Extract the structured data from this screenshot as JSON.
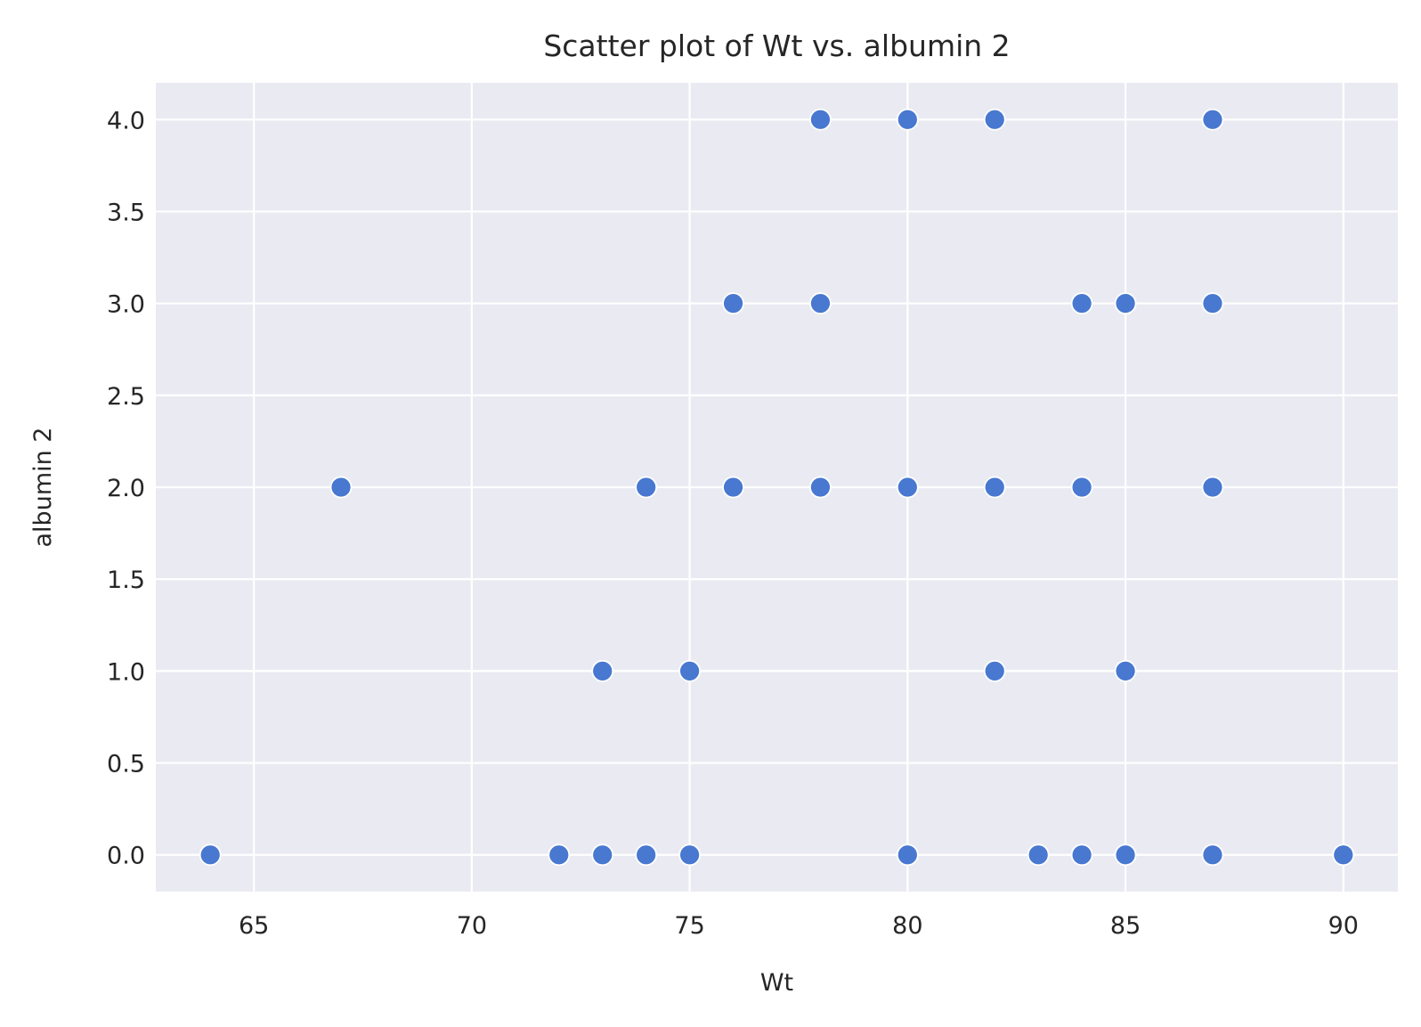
{
  "chart_data": {
    "type": "scatter",
    "title": "Scatter plot of Wt vs. albumin 2",
    "xlabel": "Wt",
    "ylabel": "albumin 2",
    "xlim": [
      62.75,
      91.25
    ],
    "ylim": [
      -0.2,
      4.2
    ],
    "xticks": [
      65,
      70,
      75,
      80,
      85,
      90
    ],
    "xtick_labels": [
      "65",
      "70",
      "75",
      "80",
      "85",
      "90"
    ],
    "yticks": [
      0.0,
      0.5,
      1.0,
      1.5,
      2.0,
      2.5,
      3.0,
      3.5,
      4.0
    ],
    "ytick_labels": [
      "0.0",
      "0.5",
      "1.0",
      "1.5",
      "2.0",
      "2.5",
      "3.0",
      "3.5",
      "4.0"
    ],
    "grid": true,
    "series": [
      {
        "color": "#4878d0",
        "points": [
          {
            "x": 78,
            "y": 4
          },
          {
            "x": 80,
            "y": 4
          },
          {
            "x": 82,
            "y": 4
          },
          {
            "x": 87,
            "y": 4
          },
          {
            "x": 76,
            "y": 3
          },
          {
            "x": 78,
            "y": 3
          },
          {
            "x": 84,
            "y": 3
          },
          {
            "x": 85,
            "y": 3
          },
          {
            "x": 87,
            "y": 3
          },
          {
            "x": 67,
            "y": 2
          },
          {
            "x": 74,
            "y": 2
          },
          {
            "x": 76,
            "y": 2
          },
          {
            "x": 78,
            "y": 2
          },
          {
            "x": 80,
            "y": 2
          },
          {
            "x": 82,
            "y": 2
          },
          {
            "x": 84,
            "y": 2
          },
          {
            "x": 87,
            "y": 2
          },
          {
            "x": 73,
            "y": 1
          },
          {
            "x": 75,
            "y": 1
          },
          {
            "x": 82,
            "y": 1
          },
          {
            "x": 85,
            "y": 1
          },
          {
            "x": 64,
            "y": 0
          },
          {
            "x": 72,
            "y": 0
          },
          {
            "x": 73,
            "y": 0
          },
          {
            "x": 74,
            "y": 0
          },
          {
            "x": 75,
            "y": 0
          },
          {
            "x": 80,
            "y": 0
          },
          {
            "x": 83,
            "y": 0
          },
          {
            "x": 84,
            "y": 0
          },
          {
            "x": 85,
            "y": 0
          },
          {
            "x": 87,
            "y": 0
          },
          {
            "x": 90,
            "y": 0
          }
        ]
      }
    ]
  }
}
